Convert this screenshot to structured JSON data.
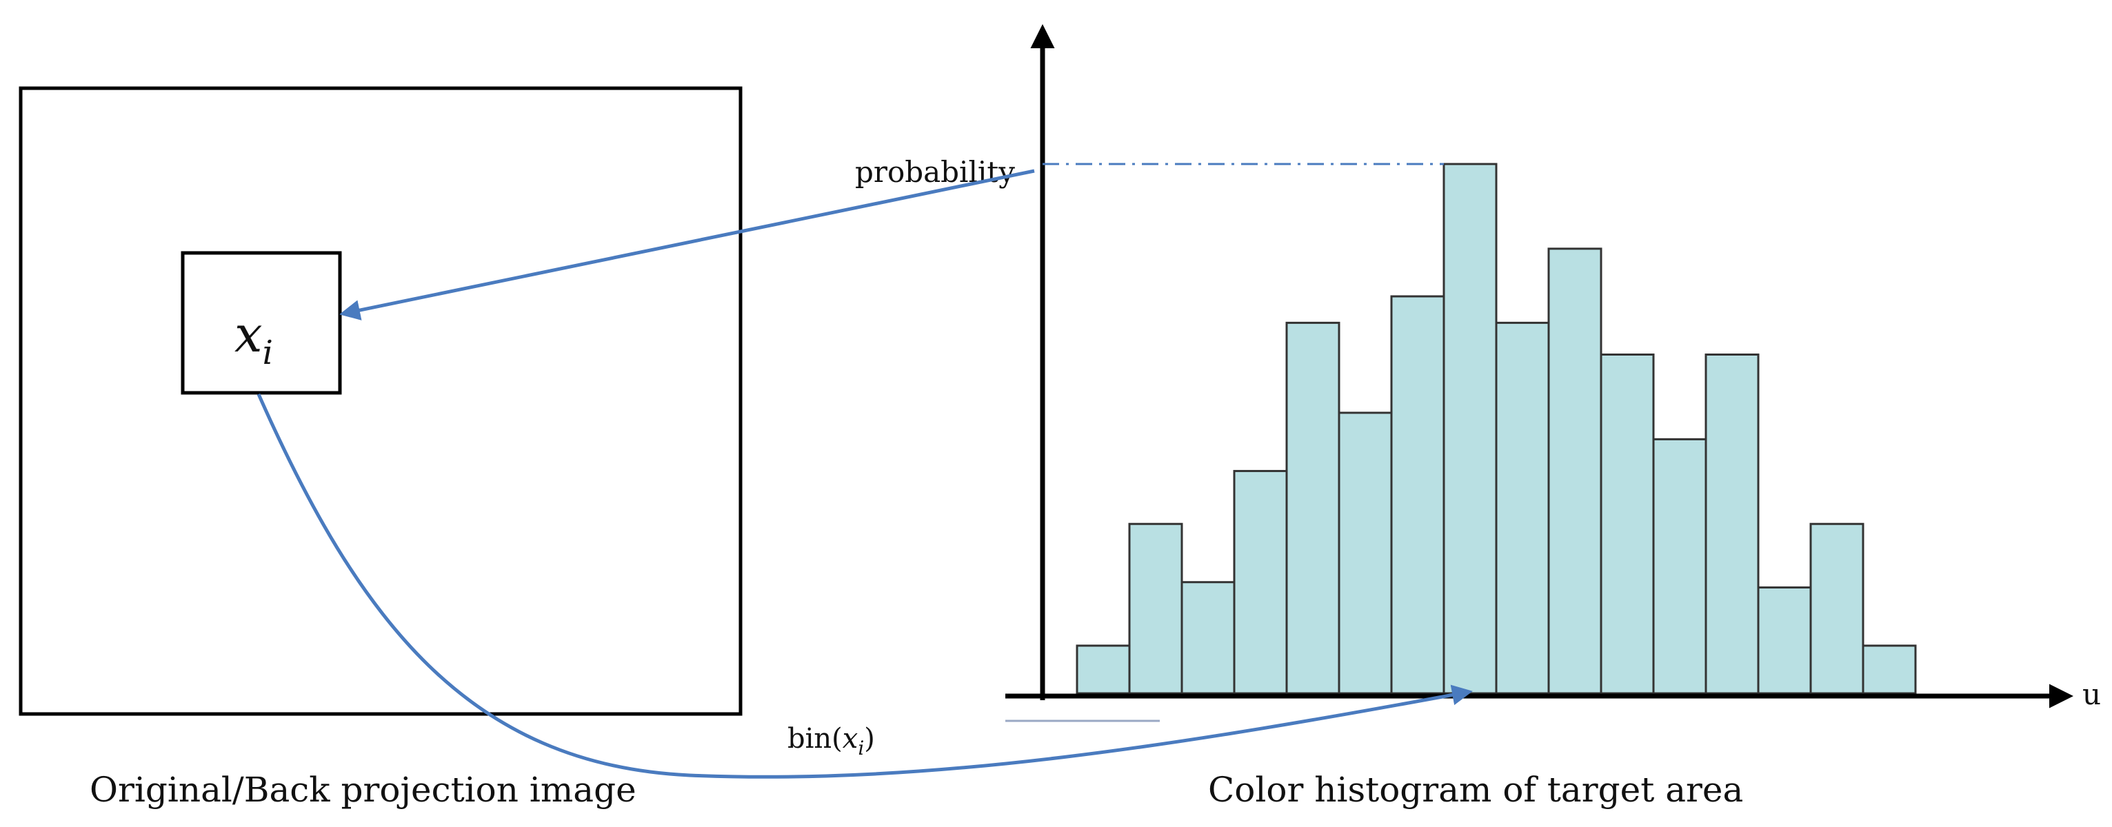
{
  "left_panel": {
    "caption": "Original/Back projection image",
    "pixel_label": {
      "base": "x",
      "subscript": "i"
    }
  },
  "right_panel": {
    "caption": "Color histogram of target area",
    "y_axis_label": "probability",
    "x_axis_label": "u",
    "bin_label": {
      "prefix": "bin(",
      "base": "x",
      "subscript": "i",
      "suffix": ")"
    }
  },
  "chart_data": {
    "type": "bar",
    "values": [
      0.09,
      0.32,
      0.21,
      0.42,
      0.7,
      0.53,
      0.75,
      1.0,
      0.7,
      0.84,
      0.64,
      0.48,
      0.64,
      0.2,
      0.32,
      0.09
    ],
    "highlighted_bin_index": 7,
    "ylim": [
      0,
      1.1
    ]
  },
  "colors": {
    "bar_fill": "#b9e0e3",
    "bar_stroke": "#333333",
    "arrow": "#4a7bbf",
    "axis": "#000000"
  }
}
